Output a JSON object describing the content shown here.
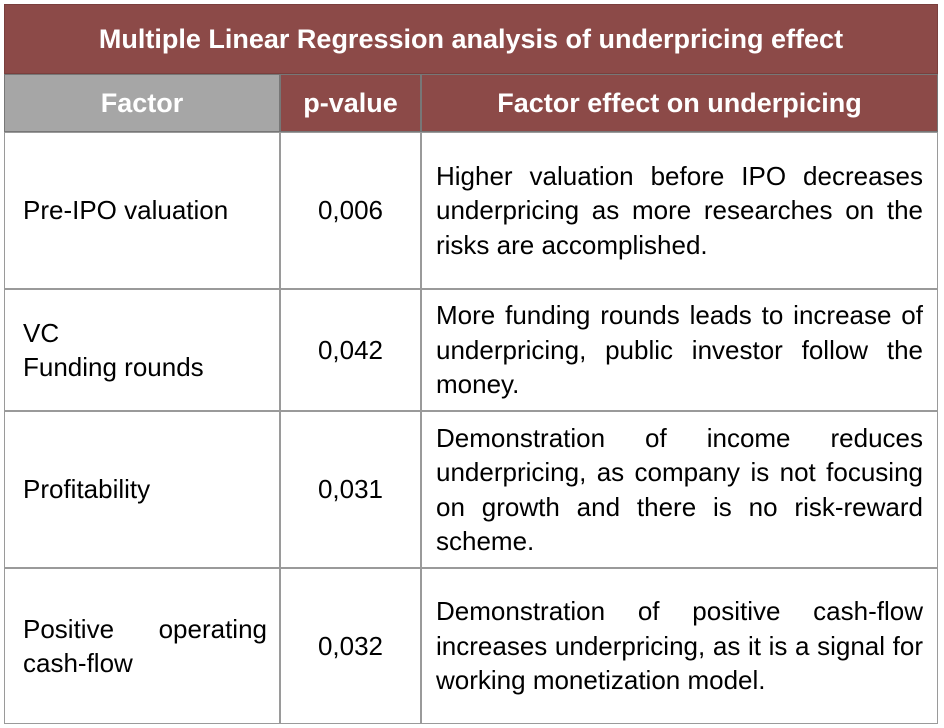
{
  "title": "Multiple Linear Regression analysis of underpricing effect",
  "headers": {
    "factor": "Factor",
    "pvalue": "p-value",
    "effect": "Factor effect on underpicing"
  },
  "rows": [
    {
      "factor_line1": "Pre-IPO valuation",
      "factor_line2": "",
      "pvalue": "0,006",
      "effect": "Higher valuation before IPO decreases underpricing as more researches on the risks are accomplished."
    },
    {
      "factor_line1": "VC",
      "factor_line2": "Funding rounds",
      "pvalue": "0,042",
      "effect": "More funding rounds leads to increase of underpricing, public investor follow the money."
    },
    {
      "factor_line1": "Profitability",
      "factor_line2": "",
      "pvalue": "0,031",
      "effect": "Demonstration of income reduces underpricing, as company is not focusing on growth and there is no risk-reward scheme."
    },
    {
      "factor_line1": "Positive operating cash-flow",
      "factor_line2": "",
      "pvalue": "0,032",
      "effect": "Demonstration of positive cash-flow increases underpricing, as it is a signal for working monetization model."
    }
  ]
}
